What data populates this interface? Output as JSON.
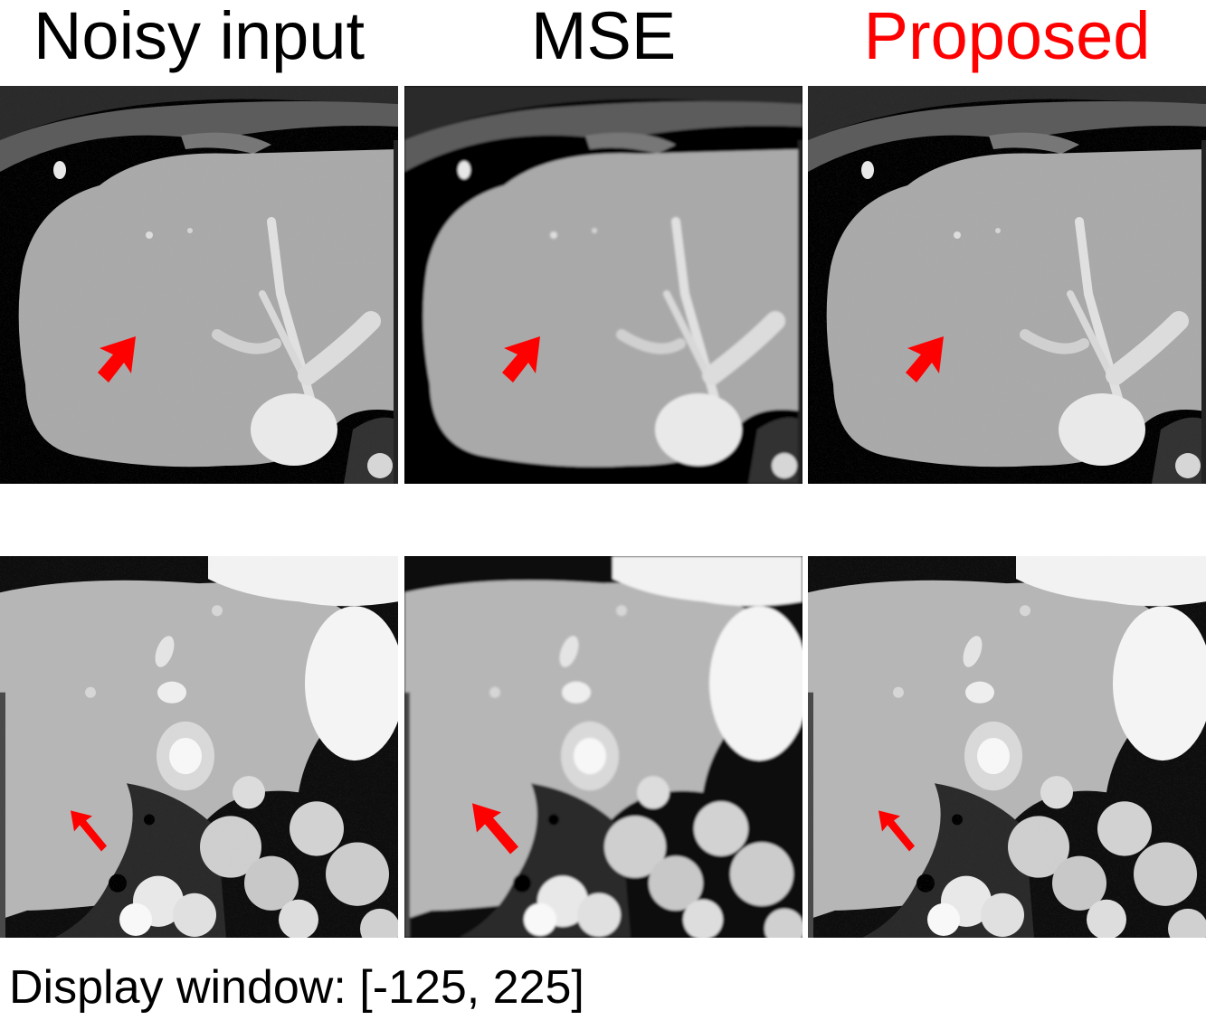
{
  "columns": [
    {
      "title": "Noisy input",
      "title_color": "#000000"
    },
    {
      "title": "MSE",
      "title_color": "#000000"
    },
    {
      "title": "Proposed",
      "title_color": "#ff0000"
    }
  ],
  "rows": [
    {
      "description": "axial CT slice of liver, top region"
    },
    {
      "description": "axial CT slice of liver, lower region with kidney and bowel"
    }
  ],
  "arrow_color": "#ff0000",
  "footer": "Display window: [-125, 225]"
}
